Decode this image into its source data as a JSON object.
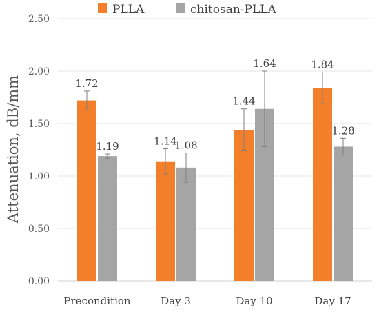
{
  "chart_data": {
    "type": "bar",
    "title": "",
    "xlabel": "",
    "ylabel": "Attenuation, dB/mm",
    "ylim": [
      0,
      2.5
    ],
    "yticks": [
      "0.00",
      "0.50",
      "1.00",
      "1.50",
      "2.00",
      "2.50"
    ],
    "ytick_values": [
      0,
      0.5,
      1.0,
      1.5,
      2.0,
      2.5
    ],
    "grid": true,
    "legend_position": "top",
    "categories": [
      "Precondition",
      "Day 3",
      "Day 10",
      "Day 17"
    ],
    "series": [
      {
        "name": "PLLA",
        "color": "#f47f2a",
        "values": [
          1.72,
          1.14,
          1.44,
          1.84
        ],
        "labels": [
          "1.72",
          "1.14",
          "1.44",
          "1.84"
        ],
        "error": [
          0.09,
          0.12,
          0.2,
          0.15
        ]
      },
      {
        "name": "chitosan-PLLA",
        "color": "#a5a5a5",
        "values": [
          1.19,
          1.08,
          1.64,
          1.28
        ],
        "labels": [
          "1.19",
          "1.08",
          "1.64",
          "1.28"
        ],
        "error": [
          0.02,
          0.14,
          0.36,
          0.08
        ]
      }
    ]
  }
}
